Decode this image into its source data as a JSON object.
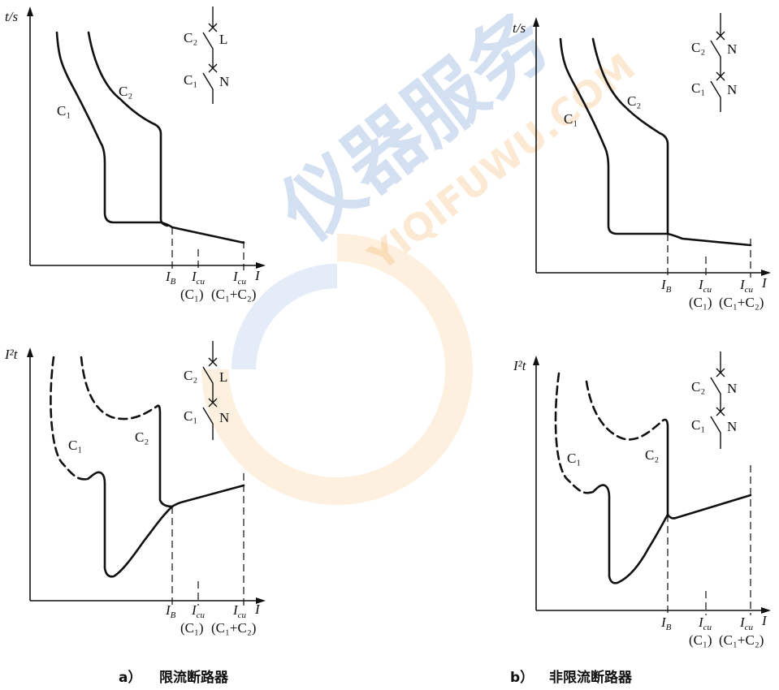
{
  "panels": {
    "a": {
      "caption_letter": "a）",
      "caption_text": "限流断路器",
      "top": {
        "y_axis": "t/s",
        "switch_upper": "C₂",
        "switch_upper_type": "L",
        "switch_lower": "C₁",
        "switch_lower_type": "N",
        "curve1": "C₁",
        "curve2": "C₂"
      },
      "bottom": {
        "y_axis": "I²t",
        "switch_upper": "C₂",
        "switch_upper_type": "L",
        "switch_lower": "C₁",
        "switch_lower_type": "N",
        "curve1": "C₁",
        "curve2": "C₂"
      }
    },
    "b": {
      "caption_letter": "b）",
      "caption_text": "非限流断路器",
      "top": {
        "y_axis": "t/s",
        "switch_upper": "C₂",
        "switch_upper_type": "N",
        "switch_lower": "C₁",
        "switch_lower_type": "N",
        "curve1": "C₁",
        "curve2": "C₂"
      },
      "bottom": {
        "y_axis": "I²t",
        "switch_upper": "C₂",
        "switch_upper_type": "N",
        "switch_lower": "C₁",
        "switch_lower_type": "N",
        "curve1": "C₁",
        "curve2": "C₂"
      }
    }
  },
  "x_labels": {
    "ib": "I",
    "ib_sub": "B",
    "icu": "I",
    "icu_sub": "cu",
    "x_axis": "I",
    "c1_note": "(C₁)",
    "c12_note": "(C₁+C₂)"
  },
  "watermark": {
    "cn": "仪器服务",
    "en": "YIQIFUWU.COM"
  }
}
